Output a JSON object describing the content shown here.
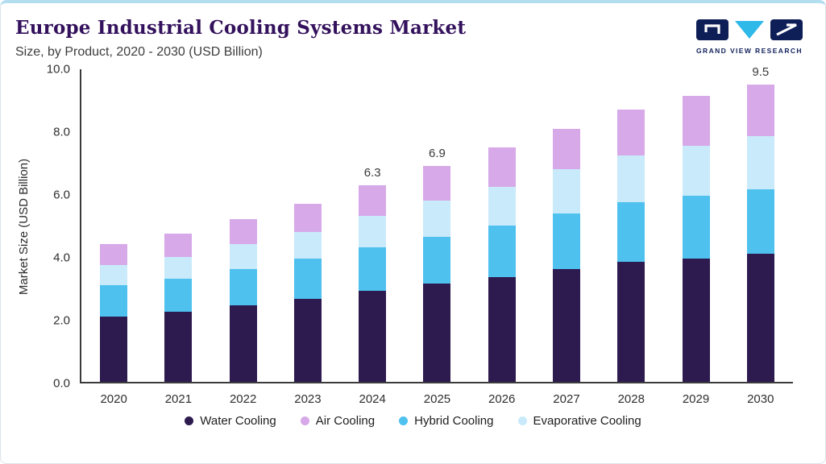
{
  "header": {
    "title": "Europe Industrial Cooling Systems Market",
    "subtitle": "Size, by Product, 2020 - 2030 (USD Billion)",
    "logo_text": "GRAND VIEW RESEARCH"
  },
  "colors": {
    "top_accent": "#b3def0",
    "title": "#33115c",
    "axis": "#3a3a3a",
    "logo_navy": "#0e1e57",
    "logo_cyan": "#2fb9e9"
  },
  "chart_data": {
    "type": "bar",
    "stacked": true,
    "title": "Europe Industrial Cooling Systems Market Size, by Product, 2020 - 2030 (USD Billion)",
    "ylabel": "Market Size (USD Billion)",
    "xlabel": "",
    "ylim": [
      0,
      10
    ],
    "yticks": [
      "0.0",
      "2.0",
      "4.0",
      "6.0",
      "8.0",
      "10.0"
    ],
    "grid": false,
    "legend_position": "bottom",
    "categories": [
      "2020",
      "2021",
      "2022",
      "2023",
      "2024",
      "2025",
      "2026",
      "2027",
      "2028",
      "2029",
      "2030"
    ],
    "series": [
      {
        "name": "Water Cooling",
        "color": "#2d1b4f",
        "values": [
          2.1,
          2.25,
          2.45,
          2.65,
          2.9,
          3.15,
          3.35,
          3.6,
          3.85,
          3.95,
          4.1
        ]
      },
      {
        "name": "Hybrid Cooling",
        "color": "#4fc1ef",
        "values": [
          1.0,
          1.05,
          1.15,
          1.3,
          1.4,
          1.5,
          1.65,
          1.8,
          1.9,
          2.0,
          2.05
        ]
      },
      {
        "name": "Evaporative Cooling",
        "color": "#c9eafb",
        "values": [
          0.65,
          0.7,
          0.8,
          0.85,
          1.0,
          1.15,
          1.25,
          1.4,
          1.5,
          1.6,
          1.7
        ]
      },
      {
        "name": "Air Cooling",
        "color": "#d7a9e8",
        "values": [
          0.65,
          0.75,
          0.8,
          0.9,
          1.0,
          1.1,
          1.25,
          1.3,
          1.45,
          1.6,
          1.65
        ]
      }
    ],
    "totals": [
      4.4,
      4.75,
      5.2,
      5.7,
      6.3,
      6.9,
      7.5,
      8.1,
      8.7,
      9.15,
      9.5
    ],
    "value_labels": {
      "2024": "6.3",
      "2025": "6.9",
      "2030": "9.5"
    },
    "legend": [
      "Water Cooling",
      "Air Cooling",
      "Hybrid Cooling",
      "Evaporative Cooling"
    ]
  }
}
